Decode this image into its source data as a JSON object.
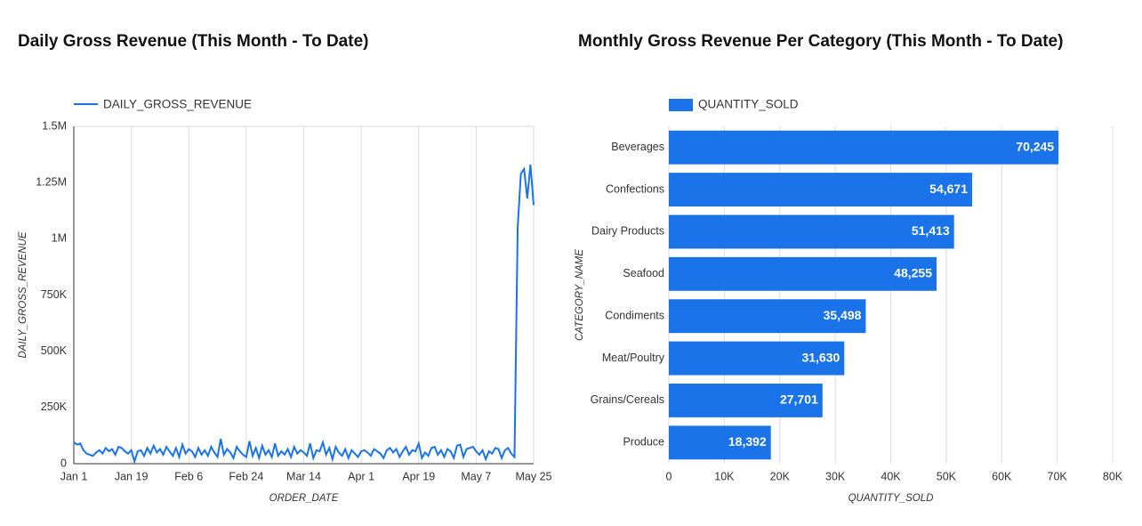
{
  "chart_data": [
    {
      "type": "line",
      "title": "Daily Gross Revenue (This Month - To Date)",
      "x_label": "ORDER_DATE",
      "y_label": "DAILY_GROSS_REVENUE",
      "x": [
        "Jan 1",
        "Jan 2",
        "Jan 3",
        "Jan 4",
        "Jan 5",
        "Jan 6",
        "Jan 7",
        "Jan 8",
        "Jan 9",
        "Jan 10",
        "Jan 11",
        "Jan 12",
        "Jan 13",
        "Jan 14",
        "Jan 15",
        "Jan 16",
        "Jan 17",
        "Jan 18",
        "Jan 19",
        "Jan 20",
        "Jan 21",
        "Jan 22",
        "Jan 23",
        "Jan 24",
        "Jan 25",
        "Jan 26",
        "Jan 27",
        "Jan 28",
        "Jan 29",
        "Jan 30",
        "Jan 31",
        "Feb 1",
        "Feb 2",
        "Feb 3",
        "Feb 4",
        "Feb 5",
        "Feb 6",
        "Feb 7",
        "Feb 8",
        "Feb 9",
        "Feb 10",
        "Feb 11",
        "Feb 12",
        "Feb 13",
        "Feb 14",
        "Feb 15",
        "Feb 16",
        "Feb 17",
        "Feb 18",
        "Feb 19",
        "Feb 20",
        "Feb 21",
        "Feb 22",
        "Feb 23",
        "Feb 24",
        "Feb 25",
        "Feb 26",
        "Feb 27",
        "Feb 28",
        "Mar 1",
        "Mar 2",
        "Mar 3",
        "Mar 4",
        "Mar 5",
        "Mar 6",
        "Mar 7",
        "Mar 8",
        "Mar 9",
        "Mar 10",
        "Mar 11",
        "Mar 12",
        "Mar 13",
        "Mar 14",
        "Mar 15",
        "Mar 16",
        "Mar 17",
        "Mar 18",
        "Mar 19",
        "Mar 20",
        "Mar 21",
        "Mar 22",
        "Mar 23",
        "Mar 24",
        "Mar 25",
        "Mar 26",
        "Mar 27",
        "Mar 28",
        "Mar 29",
        "Mar 30",
        "Mar 31",
        "Apr 1",
        "Apr 2",
        "Apr 3",
        "Apr 4",
        "Apr 5",
        "Apr 6",
        "Apr 7",
        "Apr 8",
        "Apr 9",
        "Apr 10",
        "Apr 11",
        "Apr 12",
        "Apr 13",
        "Apr 14",
        "Apr 15",
        "Apr 16",
        "Apr 17",
        "Apr 18",
        "Apr 19",
        "Apr 20",
        "Apr 21",
        "Apr 22",
        "Apr 23",
        "Apr 24",
        "Apr 25",
        "Apr 26",
        "Apr 27",
        "Apr 28",
        "Apr 29",
        "Apr 30",
        "May 1",
        "May 2",
        "May 3",
        "May 4",
        "May 5",
        "May 6",
        "May 7",
        "May 8",
        "May 9",
        "May 10",
        "May 11",
        "May 12",
        "May 13",
        "May 14",
        "May 15",
        "May 16",
        "May 17",
        "May 18",
        "May 19",
        "May 20",
        "May 21",
        "May 22",
        "May 23",
        "May 24",
        "May 25"
      ],
      "xticks": [
        "Jan 1",
        "Jan 19",
        "Feb 6",
        "Feb 24",
        "Mar 14",
        "Apr 1",
        "Apr 19",
        "May 7",
        "May 25"
      ],
      "series": [
        {
          "name": "DAILY_GROSS_REVENUE",
          "color": "#1a73e8",
          "values": [
            95000,
            85000,
            90000,
            60000,
            45000,
            40000,
            35000,
            50000,
            60000,
            45000,
            70000,
            55000,
            65000,
            40000,
            75000,
            70000,
            55000,
            45000,
            60000,
            10000,
            55000,
            60000,
            35000,
            70000,
            45000,
            80000,
            50000,
            65000,
            40000,
            75000,
            55000,
            35000,
            70000,
            30000,
            85000,
            45000,
            65000,
            55000,
            30000,
            70000,
            40000,
            60000,
            35000,
            75000,
            50000,
            30000,
            110000,
            40000,
            65000,
            50000,
            25000,
            75000,
            55000,
            40000,
            30000,
            100000,
            35000,
            70000,
            25000,
            80000,
            40000,
            60000,
            30000,
            90000,
            35000,
            55000,
            40000,
            65000,
            30000,
            75000,
            45000,
            60000,
            50000,
            35000,
            90000,
            25000,
            60000,
            55000,
            95000,
            40000,
            70000,
            20000,
            75000,
            50000,
            35000,
            65000,
            25000,
            60000,
            45000,
            30000,
            55000,
            60000,
            50000,
            35000,
            65000,
            55000,
            45000,
            25000,
            60000,
            70000,
            50000,
            65000,
            30000,
            55000,
            75000,
            40000,
            60000,
            55000,
            90000,
            25000,
            50000,
            35000,
            70000,
            75000,
            40000,
            60000,
            30000,
            65000,
            55000,
            25000,
            80000,
            85000,
            30000,
            65000,
            70000,
            75000,
            55000,
            40000,
            60000,
            20000,
            55000,
            45000,
            70000,
            65000,
            25000,
            60000,
            70000,
            45000,
            30000,
            1050000,
            1290000,
            1310000,
            1180000,
            1330000,
            1150000
          ]
        }
      ],
      "ylim": [
        0,
        1500000
      ],
      "yticks": [
        0,
        {
          "value": 250000,
          "label": "250K"
        },
        {
          "value": 500000,
          "label": "500K"
        },
        {
          "value": 750000,
          "label": "750K"
        },
        {
          "value": 1000000,
          "label": "1M"
        },
        {
          "value": 1250000,
          "label": "1.25M"
        },
        {
          "value": 1500000,
          "label": "1.5M"
        }
      ],
      "grid": "x"
    },
    {
      "type": "bar",
      "orientation": "horizontal",
      "title": "Monthly Gross Revenue Per Category (This Month - To Date)",
      "x_label": "QUANTITY_SOLD",
      "y_label": "CATEGORY_NAME",
      "categories": [
        "Beverages",
        "Confections",
        "Dairy Products",
        "Seafood",
        "Condiments",
        "Meat/Poultry",
        "Grains/Cereals",
        "Produce"
      ],
      "series": [
        {
          "name": "QUANTITY_SOLD",
          "color": "#1a73e8",
          "values": [
            70245,
            54671,
            51413,
            48255,
            35498,
            31630,
            27701,
            18392
          ],
          "value_labels": [
            "70,245",
            "54,671",
            "51,413",
            "48,255",
            "35,498",
            "31,630",
            "27,701",
            "18,392"
          ]
        }
      ],
      "xlim": [
        0,
        80000
      ],
      "xticks": [
        0,
        {
          "value": 10000,
          "label": "10K"
        },
        {
          "value": 20000,
          "label": "20K"
        },
        {
          "value": 30000,
          "label": "30K"
        },
        {
          "value": 40000,
          "label": "40K"
        },
        {
          "value": 50000,
          "label": "50K"
        },
        {
          "value": 60000,
          "label": "60K"
        },
        {
          "value": 70000,
          "label": "70K"
        },
        {
          "value": 80000,
          "label": "80K"
        }
      ],
      "grid": "x"
    }
  ]
}
